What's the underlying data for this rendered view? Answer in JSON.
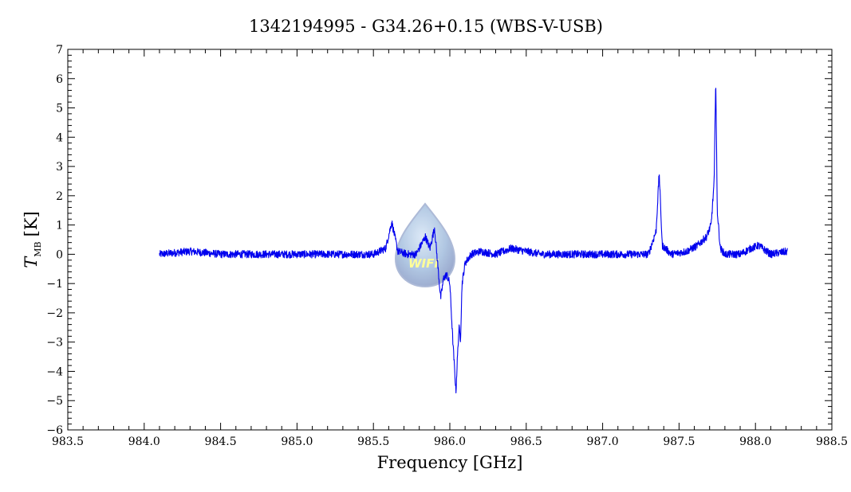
{
  "chart_data": {
    "type": "line",
    "title": "1342194995 - G34.26+0.15 (WBS-V-USB)",
    "xlabel": "Frequency [GHz]",
    "ylabel_symbol": "T",
    "ylabel_subscript": "MB",
    "ylabel_unit": "[K]",
    "xlim": [
      983.5,
      988.5
    ],
    "ylim": [
      -6,
      7
    ],
    "x_ticks": [
      983.5,
      984.0,
      984.5,
      985.0,
      985.5,
      986.0,
      986.5,
      987.0,
      987.5,
      988.0,
      988.5
    ],
    "x_tick_labels": [
      "983.5",
      "984.0",
      "984.5",
      "985.0",
      "985.5",
      "986.0",
      "986.5",
      "987.0",
      "987.5",
      "988.0",
      "988.5"
    ],
    "y_ticks": [
      -6,
      -5,
      -4,
      -3,
      -2,
      -1,
      0,
      1,
      2,
      3,
      4,
      5,
      6,
      7
    ],
    "y_tick_labels": [
      "−6",
      "−5",
      "−4",
      "−3",
      "−2",
      "−1",
      "0",
      "1",
      "2",
      "3",
      "4",
      "5",
      "6",
      "7"
    ],
    "grid": false,
    "legend": "none",
    "series": [
      {
        "color": "#0000ee",
        "x": [
          984.1,
          984.3,
          984.5,
          984.7,
          984.9,
          985.1,
          985.3,
          985.5,
          985.58,
          985.62,
          985.66,
          985.72,
          985.78,
          985.84,
          985.87,
          985.9,
          985.92,
          985.94,
          985.96,
          985.98,
          986.0,
          986.02,
          986.04,
          986.05,
          986.06,
          986.07,
          986.08,
          986.1,
          986.14,
          986.2,
          986.3,
          986.4,
          986.6,
          986.8,
          987.0,
          987.2,
          987.3,
          987.35,
          987.37,
          987.39,
          987.45,
          987.55,
          987.62,
          987.68,
          987.71,
          987.73,
          987.74,
          987.75,
          987.77,
          987.8,
          987.9,
          987.97,
          988.02,
          988.1,
          988.21
        ],
        "y": [
          0.0,
          0.1,
          0.0,
          0.0,
          0.0,
          0.0,
          0.0,
          0.0,
          0.2,
          1.1,
          0.1,
          0.0,
          0.0,
          0.6,
          0.2,
          0.9,
          -0.3,
          -1.5,
          -0.8,
          -0.7,
          -1.0,
          -3.0,
          -4.7,
          -3.5,
          -2.5,
          -2.9,
          -1.0,
          -0.3,
          0.0,
          0.1,
          0.0,
          0.2,
          0.0,
          0.0,
          0.0,
          0.0,
          0.0,
          0.8,
          2.8,
          0.3,
          0.0,
          0.1,
          0.3,
          0.6,
          1.0,
          2.5,
          6.1,
          1.5,
          0.2,
          0.0,
          0.0,
          0.2,
          0.3,
          0.0,
          0.1
        ]
      }
    ]
  },
  "watermark": {
    "text": "WIFI",
    "fill": "#9fbcdd"
  }
}
